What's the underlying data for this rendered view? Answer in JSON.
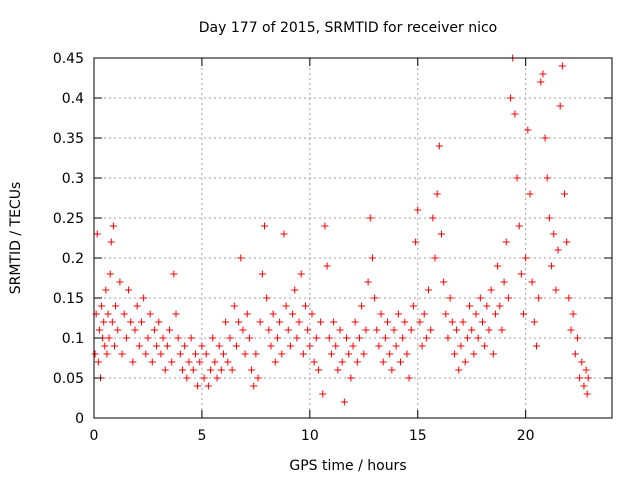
{
  "chart_data": {
    "type": "scatter",
    "title": "Day 177 of 2015, SRMTID for receiver nico",
    "xlabel": "GPS time / hours",
    "ylabel": "SRMTID / TECUs",
    "xlim": [
      0,
      24
    ],
    "ylim": [
      0,
      0.45
    ],
    "xticks": [
      0,
      5,
      10,
      15,
      20
    ],
    "yticks": [
      0,
      0.05,
      0.1,
      0.15,
      0.2,
      0.25,
      0.3,
      0.35,
      0.4,
      0.45
    ],
    "grid": true,
    "marker": "+",
    "color": "#ff0000",
    "series": [
      {
        "name": "SRMTID",
        "points": [
          [
            0.05,
            0.08
          ],
          [
            0.1,
            0.13
          ],
          [
            0.15,
            0.23
          ],
          [
            0.2,
            0.07
          ],
          [
            0.25,
            0.11
          ],
          [
            0.3,
            0.05
          ],
          [
            0.35,
            0.14
          ],
          [
            0.4,
            0.1
          ],
          [
            0.45,
            0.12
          ],
          [
            0.5,
            0.09
          ],
          [
            0.55,
            0.16
          ],
          [
            0.6,
            0.08
          ],
          [
            0.65,
            0.13
          ],
          [
            0.7,
            0.1
          ],
          [
            0.75,
            0.18
          ],
          [
            0.8,
            0.22
          ],
          [
            0.85,
            0.12
          ],
          [
            0.9,
            0.24
          ],
          [
            0.95,
            0.09
          ],
          [
            1.0,
            0.14
          ],
          [
            1.1,
            0.11
          ],
          [
            1.2,
            0.17
          ],
          [
            1.3,
            0.08
          ],
          [
            1.4,
            0.13
          ],
          [
            1.5,
            0.1
          ],
          [
            1.6,
            0.16
          ],
          [
            1.7,
            0.12
          ],
          [
            1.8,
            0.07
          ],
          [
            1.9,
            0.11
          ],
          [
            2.0,
            0.14
          ],
          [
            2.1,
            0.09
          ],
          [
            2.2,
            0.12
          ],
          [
            2.3,
            0.15
          ],
          [
            2.4,
            0.08
          ],
          [
            2.5,
            0.1
          ],
          [
            2.6,
            0.13
          ],
          [
            2.7,
            0.07
          ],
          [
            2.8,
            0.11
          ],
          [
            2.9,
            0.09
          ],
          [
            3.0,
            0.12
          ],
          [
            3.1,
            0.08
          ],
          [
            3.2,
            0.1
          ],
          [
            3.3,
            0.06
          ],
          [
            3.4,
            0.09
          ],
          [
            3.5,
            0.11
          ],
          [
            3.6,
            0.07
          ],
          [
            3.7,
            0.18
          ],
          [
            3.8,
            0.13
          ],
          [
            3.9,
            0.1
          ],
          [
            4.0,
            0.08
          ],
          [
            4.1,
            0.06
          ],
          [
            4.2,
            0.09
          ],
          [
            4.3,
            0.05
          ],
          [
            4.4,
            0.07
          ],
          [
            4.5,
            0.1
          ],
          [
            4.6,
            0.06
          ],
          [
            4.7,
            0.08
          ],
          [
            4.8,
            0.04
          ],
          [
            4.9,
            0.07
          ],
          [
            5.0,
            0.09
          ],
          [
            5.1,
            0.05
          ],
          [
            5.2,
            0.08
          ],
          [
            5.3,
            0.04
          ],
          [
            5.4,
            0.06
          ],
          [
            5.5,
            0.1
          ],
          [
            5.6,
            0.07
          ],
          [
            5.7,
            0.05
          ],
          [
            5.8,
            0.09
          ],
          [
            5.9,
            0.06
          ],
          [
            6.0,
            0.08
          ],
          [
            6.1,
            0.12
          ],
          [
            6.2,
            0.07
          ],
          [
            6.3,
            0.1
          ],
          [
            6.4,
            0.06
          ],
          [
            6.5,
            0.14
          ],
          [
            6.6,
            0.09
          ],
          [
            6.7,
            0.12
          ],
          [
            6.8,
            0.2
          ],
          [
            6.9,
            0.11
          ],
          [
            7.0,
            0.08
          ],
          [
            7.1,
            0.13
          ],
          [
            7.2,
            0.1
          ],
          [
            7.3,
            0.06
          ],
          [
            7.4,
            0.04
          ],
          [
            7.5,
            0.08
          ],
          [
            7.6,
            0.05
          ],
          [
            7.7,
            0.12
          ],
          [
            7.8,
            0.18
          ],
          [
            7.9,
            0.24
          ],
          [
            8.0,
            0.15
          ],
          [
            8.1,
            0.11
          ],
          [
            8.2,
            0.09
          ],
          [
            8.3,
            0.13
          ],
          [
            8.4,
            0.07
          ],
          [
            8.5,
            0.1
          ],
          [
            8.6,
            0.12
          ],
          [
            8.7,
            0.08
          ],
          [
            8.8,
            0.23
          ],
          [
            8.9,
            0.14
          ],
          [
            9.0,
            0.11
          ],
          [
            9.1,
            0.09
          ],
          [
            9.2,
            0.13
          ],
          [
            9.3,
            0.16
          ],
          [
            9.4,
            0.1
          ],
          [
            9.5,
            0.12
          ],
          [
            9.6,
            0.18
          ],
          [
            9.7,
            0.08
          ],
          [
            9.8,
            0.14
          ],
          [
            9.9,
            0.11
          ],
          [
            10.0,
            0.09
          ],
          [
            10.1,
            0.13
          ],
          [
            10.2,
            0.07
          ],
          [
            10.3,
            0.1
          ],
          [
            10.4,
            0.06
          ],
          [
            10.5,
            0.12
          ],
          [
            10.6,
            0.03
          ],
          [
            10.7,
            0.24
          ],
          [
            10.8,
            0.19
          ],
          [
            10.9,
            0.1
          ],
          [
            11.0,
            0.08
          ],
          [
            11.1,
            0.12
          ],
          [
            11.2,
            0.09
          ],
          [
            11.3,
            0.06
          ],
          [
            11.4,
            0.11
          ],
          [
            11.5,
            0.07
          ],
          [
            11.6,
            0.02
          ],
          [
            11.7,
            0.1
          ],
          [
            11.8,
            0.08
          ],
          [
            11.9,
            0.05
          ],
          [
            12.0,
            0.09
          ],
          [
            12.1,
            0.12
          ],
          [
            12.2,
            0.07
          ],
          [
            12.3,
            0.1
          ],
          [
            12.4,
            0.14
          ],
          [
            12.5,
            0.08
          ],
          [
            12.6,
            0.11
          ],
          [
            12.7,
            0.17
          ],
          [
            12.8,
            0.25
          ],
          [
            12.9,
            0.2
          ],
          [
            13.0,
            0.15
          ],
          [
            13.1,
            0.11
          ],
          [
            13.2,
            0.09
          ],
          [
            13.3,
            0.13
          ],
          [
            13.4,
            0.07
          ],
          [
            13.5,
            0.1
          ],
          [
            13.6,
            0.12
          ],
          [
            13.7,
            0.08
          ],
          [
            13.8,
            0.06
          ],
          [
            13.9,
            0.11
          ],
          [
            14.0,
            0.09
          ],
          [
            14.1,
            0.13
          ],
          [
            14.2,
            0.07
          ],
          [
            14.3,
            0.1
          ],
          [
            14.4,
            0.12
          ],
          [
            14.5,
            0.08
          ],
          [
            14.6,
            0.05
          ],
          [
            14.7,
            0.11
          ],
          [
            14.8,
            0.14
          ],
          [
            14.9,
            0.22
          ],
          [
            15.0,
            0.26
          ],
          [
            15.1,
            0.12
          ],
          [
            15.2,
            0.09
          ],
          [
            15.3,
            0.13
          ],
          [
            15.4,
            0.1
          ],
          [
            15.5,
            0.16
          ],
          [
            15.6,
            0.11
          ],
          [
            15.7,
            0.25
          ],
          [
            15.8,
            0.2
          ],
          [
            15.9,
            0.28
          ],
          [
            16.0,
            0.34
          ],
          [
            16.1,
            0.23
          ],
          [
            16.2,
            0.17
          ],
          [
            16.3,
            0.13
          ],
          [
            16.4,
            0.1
          ],
          [
            16.5,
            0.15
          ],
          [
            16.6,
            0.12
          ],
          [
            16.7,
            0.08
          ],
          [
            16.8,
            0.11
          ],
          [
            16.9,
            0.06
          ],
          [
            17.0,
            0.09
          ],
          [
            17.1,
            0.12
          ],
          [
            17.2,
            0.07
          ],
          [
            17.3,
            0.1
          ],
          [
            17.4,
            0.14
          ],
          [
            17.5,
            0.11
          ],
          [
            17.6,
            0.08
          ],
          [
            17.7,
            0.13
          ],
          [
            17.8,
            0.1
          ],
          [
            17.9,
            0.15
          ],
          [
            18.0,
            0.12
          ],
          [
            18.1,
            0.09
          ],
          [
            18.2,
            0.14
          ],
          [
            18.3,
            0.11
          ],
          [
            18.4,
            0.16
          ],
          [
            18.5,
            0.08
          ],
          [
            18.6,
            0.13
          ],
          [
            18.7,
            0.19
          ],
          [
            18.8,
            0.14
          ],
          [
            18.9,
            0.11
          ],
          [
            19.0,
            0.17
          ],
          [
            19.1,
            0.22
          ],
          [
            19.2,
            0.15
          ],
          [
            19.3,
            0.4
          ],
          [
            19.4,
            0.45
          ],
          [
            19.5,
            0.38
          ],
          [
            19.6,
            0.3
          ],
          [
            19.7,
            0.24
          ],
          [
            19.8,
            0.18
          ],
          [
            19.9,
            0.13
          ],
          [
            20.0,
            0.2
          ],
          [
            20.1,
            0.36
          ],
          [
            20.2,
            0.28
          ],
          [
            20.3,
            0.17
          ],
          [
            20.4,
            0.12
          ],
          [
            20.5,
            0.09
          ],
          [
            20.6,
            0.15
          ],
          [
            20.7,
            0.42
          ],
          [
            20.8,
            0.43
          ],
          [
            20.9,
            0.35
          ],
          [
            21.0,
            0.3
          ],
          [
            21.1,
            0.25
          ],
          [
            21.2,
            0.19
          ],
          [
            21.3,
            0.23
          ],
          [
            21.4,
            0.16
          ],
          [
            21.5,
            0.21
          ],
          [
            21.6,
            0.39
          ],
          [
            21.7,
            0.44
          ],
          [
            21.8,
            0.28
          ],
          [
            21.9,
            0.22
          ],
          [
            22.0,
            0.15
          ],
          [
            22.1,
            0.11
          ],
          [
            22.2,
            0.13
          ],
          [
            22.3,
            0.08
          ],
          [
            22.4,
            0.1
          ],
          [
            22.5,
            0.05
          ],
          [
            22.6,
            0.07
          ],
          [
            22.7,
            0.04
          ],
          [
            22.8,
            0.06
          ],
          [
            22.85,
            0.03
          ],
          [
            22.9,
            0.05
          ]
        ]
      }
    ]
  }
}
